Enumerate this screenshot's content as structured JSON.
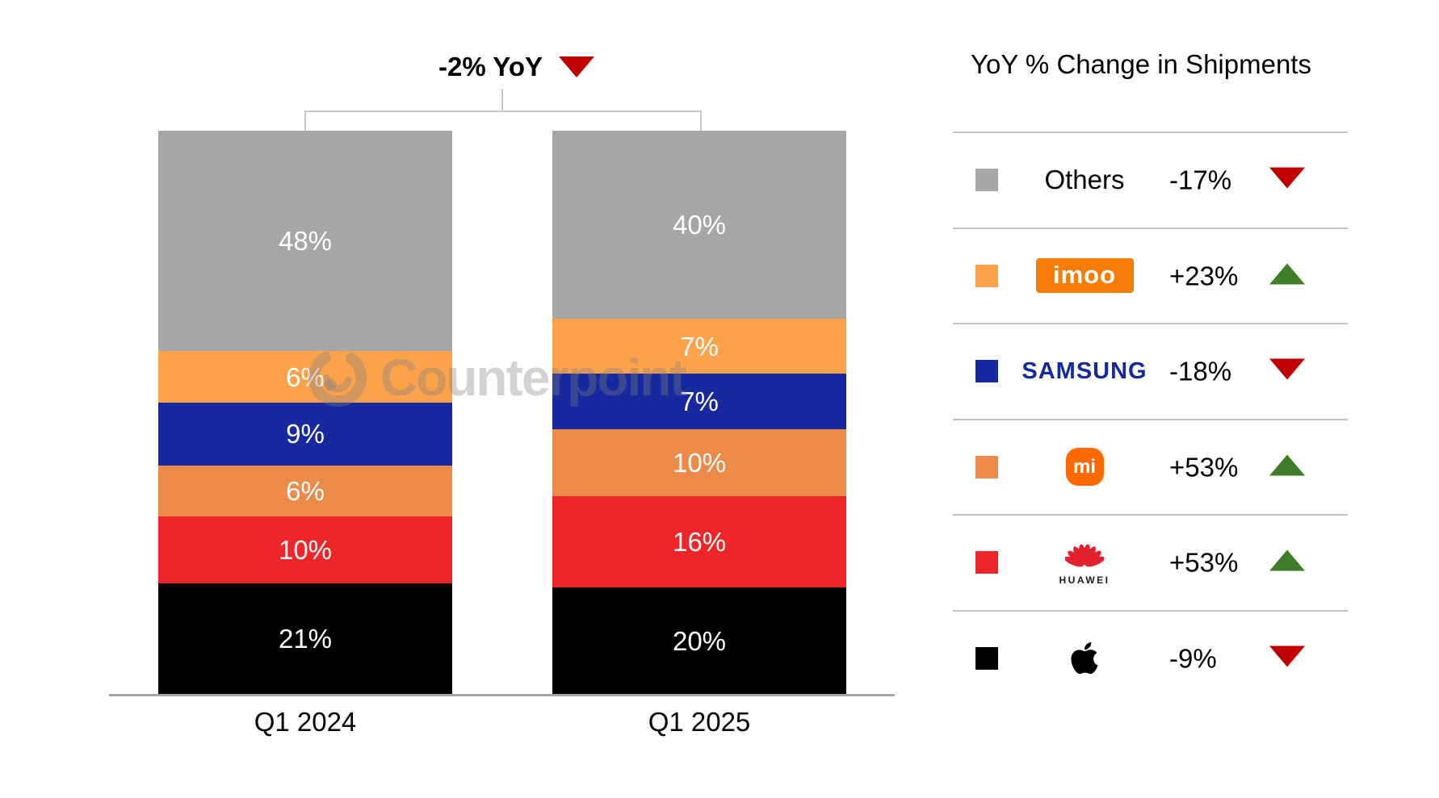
{
  "chart_data": {
    "type": "bar",
    "subtype": "stacked-100-percent",
    "title": "-2% YoY",
    "title_direction": "down",
    "categories": [
      "Q1 2024",
      "Q1 2025"
    ],
    "value_suffix": "%",
    "stack_order_top_to_bottom": [
      "Others",
      "imoo",
      "Samsung",
      "Xiaomi",
      "Huawei",
      "Apple"
    ],
    "series": [
      {
        "name": "Others",
        "color": "#a6a6a6",
        "values": [
          48,
          40
        ]
      },
      {
        "name": "imoo",
        "color": "#fba24a",
        "values": [
          6,
          7
        ]
      },
      {
        "name": "Samsung",
        "color": "#18289e",
        "values": [
          9,
          7
        ]
      },
      {
        "name": "Xiaomi",
        "color": "#ec8b49",
        "values": [
          6,
          10
        ]
      },
      {
        "name": "Huawei",
        "color": "#ee2629",
        "values": [
          10,
          16
        ]
      },
      {
        "name": "Apple",
        "color": "#000000",
        "values": [
          21,
          20
        ]
      }
    ],
    "ylim": [
      0,
      100
    ],
    "grid": false,
    "legend_position": "right-table"
  },
  "legend": {
    "title": "YoY % Change in Shipments",
    "rows": [
      {
        "brand": "Others",
        "logo": "text",
        "label": "Others",
        "change": "-17%",
        "direction": "down",
        "swatch": "#a6a6a6"
      },
      {
        "brand": "imoo",
        "logo": "imoo",
        "label": "imoo",
        "change": "+23%",
        "direction": "up",
        "swatch": "#fba24a"
      },
      {
        "brand": "Samsung",
        "logo": "samsung",
        "label": "SAMSUNG",
        "change": "-18%",
        "direction": "down",
        "swatch": "#18289e"
      },
      {
        "brand": "Xiaomi",
        "logo": "mi",
        "label": "mi",
        "change": "+53%",
        "direction": "up",
        "swatch": "#ec8b49"
      },
      {
        "brand": "Huawei",
        "logo": "huawei",
        "label": "HUAWEI",
        "change": "+53%",
        "direction": "up",
        "swatch": "#ee2629"
      },
      {
        "brand": "Apple",
        "logo": "apple",
        "label": "",
        "change": "-9%",
        "direction": "down",
        "swatch": "#000000"
      }
    ]
  },
  "watermark": {
    "text": "Counterpoint"
  },
  "colors": {
    "up_green": "#3f7d28",
    "down_red": "#c00000",
    "axis_gray": "#a6a6a6",
    "divider_gray": "#c3c3c3",
    "imoo_badge_orange": "#f67d09",
    "samsung_blue": "#1428a0",
    "mi_orange": "#ff6900",
    "huawei_red": "#e02231",
    "apple_black": "#000000",
    "watermark_gray": "rgba(128,128,128,0.35)"
  }
}
